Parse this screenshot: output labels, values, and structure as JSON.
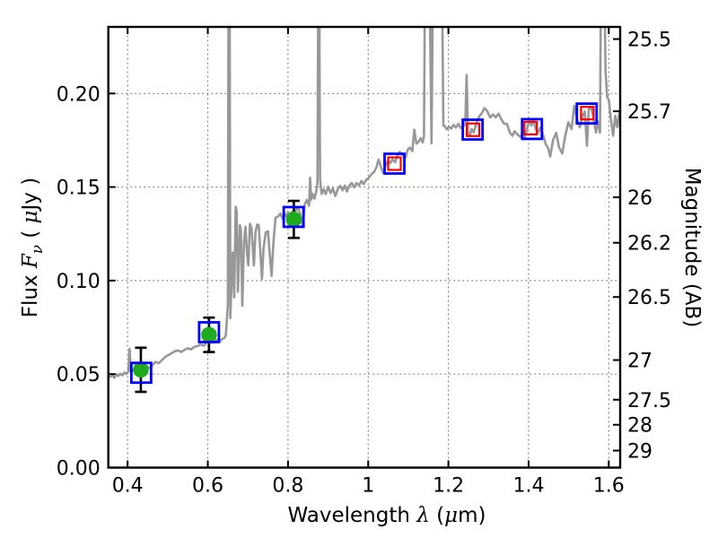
{
  "chart_data": {
    "type": "line",
    "description": "Galaxy SED: model spectrum (gray) with observed photometry (green circles with error bars) and band-averaged model/IR photometry (blue and red open squares)",
    "xlabel_parts": {
      "wavelength": "Wavelength ",
      "lambda": "λ",
      "open": " (",
      "mu": "μ",
      "close": "m)"
    },
    "ylabel_left_parts": {
      "flux": "Flux ",
      "F": "F",
      "nu": "ν",
      "open": " ( ",
      "mu": "μ",
      "jy": "Jy )"
    },
    "ylabel_right": "Magnitude (AB)",
    "xlim": [
      0.3519,
      1.6284
    ],
    "ylim": [
      0,
      0.2356
    ],
    "grid": "dotted",
    "x_ticks": [
      {
        "v": 0.4,
        "label": "0.4"
      },
      {
        "v": 0.6,
        "label": "0.6"
      },
      {
        "v": 0.8,
        "label": "0.8"
      },
      {
        "v": 1.0,
        "label": "1"
      },
      {
        "v": 1.2,
        "label": "1.2"
      },
      {
        "v": 1.4,
        "label": "1.4"
      },
      {
        "v": 1.6,
        "label": "1.6"
      }
    ],
    "y_ticks_left": [
      {
        "v": 0.0,
        "label": "0.00"
      },
      {
        "v": 0.05,
        "label": "0.05"
      },
      {
        "v": 0.1,
        "label": "0.10"
      },
      {
        "v": 0.15,
        "label": "0.15"
      },
      {
        "v": 0.2,
        "label": "0.20"
      }
    ],
    "y_ticks_right": [
      {
        "label": "25.5",
        "mag": 25.5,
        "flux": 0.2291
      },
      {
        "label": "25.7",
        "mag": 25.7,
        "flux": 0.1905
      },
      {
        "label": "26",
        "mag": 26.0,
        "flux": 0.1445
      },
      {
        "label": "26.2",
        "mag": 26.2,
        "flux": 0.1202
      },
      {
        "label": "26.5",
        "mag": 26.5,
        "flux": 0.0912
      },
      {
        "label": "27",
        "mag": 27.0,
        "flux": 0.0575
      },
      {
        "label": "27.5",
        "mag": 27.5,
        "flux": 0.0363
      },
      {
        "label": "28",
        "mag": 28.0,
        "flux": 0.0229
      },
      {
        "label": "29",
        "mag": 29.0,
        "flux": 0.0091
      }
    ],
    "colors": {
      "spectrum": "#989898",
      "observed": "#1faa1f",
      "model_square": "#0000ff",
      "ir_square": "#ff0000",
      "errorbar": "#000000"
    },
    "series": [
      {
        "name": "observed-photometry",
        "marker": "filled-circle",
        "color": "#1faa1f",
        "points": [
          [
            0.433,
            0.0523,
            0.0118
          ],
          [
            0.603,
            0.071,
            0.0092
          ],
          [
            0.8145,
            0.1327,
            0.0099
          ]
        ]
      },
      {
        "name": "model-band-photometry",
        "marker": "open-square-blue",
        "color": "#0000ff",
        "points": [
          [
            0.434,
            0.0507
          ],
          [
            0.603,
            0.0724
          ],
          [
            0.814,
            0.134
          ],
          [
            1.0655,
            0.1625
          ],
          [
            1.2605,
            0.1807
          ],
          [
            1.4085,
            0.181
          ],
          [
            1.545,
            0.1893
          ]
        ]
      },
      {
        "name": "ir-band-photometry",
        "marker": "open-square-red",
        "color": "#ff0000",
        "points": [
          [
            1.0655,
            0.1625
          ],
          [
            1.2615,
            0.1806
          ],
          [
            1.405,
            0.1815
          ],
          [
            1.5465,
            0.1895
          ]
        ]
      }
    ],
    "spectrum": [
      [
        0.352,
        0.049
      ],
      [
        0.357,
        0.0485
      ],
      [
        0.362,
        0.0495
      ],
      [
        0.367,
        0.048
      ],
      [
        0.372,
        0.0498
      ],
      [
        0.377,
        0.049
      ],
      [
        0.382,
        0.0502
      ],
      [
        0.387,
        0.0493
      ],
      [
        0.392,
        0.0508
      ],
      [
        0.397,
        0.05
      ],
      [
        0.402,
        0.0515
      ],
      [
        0.405,
        0.0635
      ],
      [
        0.408,
        0.051
      ],
      [
        0.413,
        0.0522
      ],
      [
        0.418,
        0.0515
      ],
      [
        0.424,
        0.0528
      ],
      [
        0.43,
        0.0522
      ],
      [
        0.436,
        0.0535
      ],
      [
        0.442,
        0.0525
      ],
      [
        0.448,
        0.054
      ],
      [
        0.455,
        0.0532
      ],
      [
        0.462,
        0.0548
      ],
      [
        0.47,
        0.0565
      ],
      [
        0.478,
        0.0558
      ],
      [
        0.486,
        0.0575
      ],
      [
        0.494,
        0.0592
      ],
      [
        0.502,
        0.0602
      ],
      [
        0.51,
        0.0612
      ],
      [
        0.518,
        0.0622
      ],
      [
        0.526,
        0.0626
      ],
      [
        0.534,
        0.0618
      ],
      [
        0.542,
        0.063
      ],
      [
        0.55,
        0.0638
      ],
      [
        0.558,
        0.0632
      ],
      [
        0.566,
        0.0645
      ],
      [
        0.574,
        0.065
      ],
      [
        0.582,
        0.0658
      ],
      [
        0.59,
        0.0652
      ],
      [
        0.597,
        0.0669
      ],
      [
        0.604,
        0.0675
      ],
      [
        0.611,
        0.0668
      ],
      [
        0.618,
        0.068
      ],
      [
        0.625,
        0.0682
      ],
      [
        0.63,
        0.0675
      ],
      [
        0.636,
        0.0688
      ],
      [
        0.641,
        0.0692
      ],
      [
        0.645,
        0.0706
      ],
      [
        0.65,
        0.087
      ],
      [
        0.6515,
        0.26
      ],
      [
        0.6545,
        0.26
      ],
      [
        0.656,
        0.08
      ],
      [
        0.662,
        0.115
      ],
      [
        0.666,
        0.091
      ],
      [
        0.6695,
        0.1395
      ],
      [
        0.672,
        0.137
      ],
      [
        0.675,
        0.094
      ],
      [
        0.68,
        0.1296
      ],
      [
        0.6825,
        0.127
      ],
      [
        0.686,
        0.0865
      ],
      [
        0.69,
        0.12
      ],
      [
        0.694,
        0.1288
      ],
      [
        0.698,
        0.114
      ],
      [
        0.701,
        0.1081
      ],
      [
        0.705,
        0.1304
      ],
      [
        0.709,
        0.128
      ],
      [
        0.715,
        0.1081
      ],
      [
        0.719,
        0.126
      ],
      [
        0.7235,
        0.13
      ],
      [
        0.727,
        0.1296
      ],
      [
        0.731,
        0.115
      ],
      [
        0.735,
        0.1009
      ],
      [
        0.739,
        0.117
      ],
      [
        0.7445,
        0.1258
      ],
      [
        0.75,
        0.1264
      ],
      [
        0.7545,
        0.114
      ],
      [
        0.759,
        0.1025
      ],
      [
        0.7635,
        0.12
      ],
      [
        0.769,
        0.1336
      ],
      [
        0.775,
        0.1342
      ],
      [
        0.781,
        0.1358
      ],
      [
        0.787,
        0.1328
      ],
      [
        0.791,
        0.136
      ],
      [
        0.796,
        0.1342
      ],
      [
        0.8,
        0.1364
      ],
      [
        0.8045,
        0.1338
      ],
      [
        0.809,
        0.1366
      ],
      [
        0.8135,
        0.1322
      ],
      [
        0.818,
        0.1368
      ],
      [
        0.824,
        0.1392
      ],
      [
        0.83,
        0.1362
      ],
      [
        0.837,
        0.1288
      ],
      [
        0.842,
        0.141
      ],
      [
        0.847,
        0.1431
      ],
      [
        0.8525,
        0.14
      ],
      [
        0.855,
        0.155
      ],
      [
        0.858,
        0.1432
      ],
      [
        0.862,
        0.1462
      ],
      [
        0.866,
        0.1438
      ],
      [
        0.87,
        0.1472
      ],
      [
        0.8735,
        0.152
      ],
      [
        0.8755,
        0.26
      ],
      [
        0.878,
        0.26
      ],
      [
        0.88,
        0.154
      ],
      [
        0.884,
        0.1463
      ],
      [
        0.889,
        0.1488
      ],
      [
        0.894,
        0.1462
      ],
      [
        0.9,
        0.1502
      ],
      [
        0.906,
        0.1468
      ],
      [
        0.912,
        0.1492
      ],
      [
        0.918,
        0.1452
      ],
      [
        0.924,
        0.1488
      ],
      [
        0.93,
        0.1506
      ],
      [
        0.936,
        0.1482
      ],
      [
        0.942,
        0.1508
      ],
      [
        0.947,
        0.1476
      ],
      [
        0.953,
        0.1508
      ],
      [
        0.959,
        0.1522
      ],
      [
        0.965,
        0.1498
      ],
      [
        0.971,
        0.1522
      ],
      [
        0.977,
        0.1508
      ],
      [
        0.983,
        0.1532
      ],
      [
        0.989,
        0.1516
      ],
      [
        0.995,
        0.1538
      ],
      [
        1.001,
        0.1548
      ],
      [
        1.008,
        0.1568
      ],
      [
        1.015,
        0.1582
      ],
      [
        1.021,
        0.1608
      ],
      [
        1.026,
        0.1647
      ],
      [
        1.031,
        0.1612
      ],
      [
        1.037,
        0.1575
      ],
      [
        1.043,
        0.1612
      ],
      [
        1.049,
        0.1642
      ],
      [
        1.055,
        0.1628
      ],
      [
        1.061,
        0.1648
      ],
      [
        1.067,
        0.1632
      ],
      [
        1.073,
        0.1668
      ],
      [
        1.079,
        0.1688
      ],
      [
        1.085,
        0.1672
      ],
      [
        1.093,
        0.1655
      ],
      [
        1.099,
        0.1702
      ],
      [
        1.104,
        0.171
      ],
      [
        1.11,
        0.1692
      ],
      [
        1.115,
        0.1807
      ],
      [
        1.12,
        0.1732
      ],
      [
        1.126,
        0.1742
      ],
      [
        1.131,
        0.1762
      ],
      [
        1.136,
        0.1738
      ],
      [
        1.139,
        0.177
      ],
      [
        1.1415,
        0.26
      ],
      [
        1.153,
        0.26
      ],
      [
        1.158,
        0.1734
      ],
      [
        1.1615,
        0.26
      ],
      [
        1.184,
        0.26
      ],
      [
        1.1875,
        0.1828
      ],
      [
        1.19,
        0.1828
      ],
      [
        1.196,
        0.1808
      ],
      [
        1.201,
        0.1823
      ],
      [
        1.207,
        0.1812
      ],
      [
        1.213,
        0.1832
      ],
      [
        1.219,
        0.1818
      ],
      [
        1.225,
        0.1838
      ],
      [
        1.231,
        0.1815
      ],
      [
        1.237,
        0.1822
      ],
      [
        1.242,
        0.184
      ],
      [
        1.2455,
        0.2099
      ],
      [
        1.249,
        0.178
      ],
      [
        1.253,
        0.1774
      ],
      [
        1.258,
        0.181
      ],
      [
        1.263,
        0.1792
      ],
      [
        1.27,
        0.1842
      ],
      [
        1.277,
        0.1878
      ],
      [
        1.283,
        0.1894
      ],
      [
        1.29,
        0.1922
      ],
      [
        1.297,
        0.1906
      ],
      [
        1.304,
        0.1872
      ],
      [
        1.311,
        0.1888
      ],
      [
        1.318,
        0.1872
      ],
      [
        1.325,
        0.1892
      ],
      [
        1.332,
        0.1862
      ],
      [
        1.339,
        0.1838
      ],
      [
        1.346,
        0.1838
      ],
      [
        1.353,
        0.1792
      ],
      [
        1.36,
        0.1774
      ],
      [
        1.365,
        0.1798
      ],
      [
        1.372,
        0.1782
      ],
      [
        1.379,
        0.1768
      ],
      [
        1.386,
        0.1788
      ],
      [
        1.391,
        0.1766
      ],
      [
        1.397,
        0.182
      ],
      [
        1.402,
        0.1854
      ],
      [
        1.407,
        0.1828
      ],
      [
        1.412,
        0.186
      ],
      [
        1.418,
        0.1808
      ],
      [
        1.424,
        0.1792
      ],
      [
        1.43,
        0.182
      ],
      [
        1.437,
        0.1772
      ],
      [
        1.443,
        0.1727
      ],
      [
        1.449,
        0.1708
      ],
      [
        1.454,
        0.1663
      ],
      [
        1.461,
        0.1752
      ],
      [
        1.469,
        0.179
      ],
      [
        1.476,
        0.1712
      ],
      [
        1.484,
        0.1679
      ],
      [
        1.491,
        0.1768
      ],
      [
        1.499,
        0.1846
      ],
      [
        1.507,
        0.181
      ],
      [
        1.514,
        0.1934
      ],
      [
        1.521,
        0.186
      ],
      [
        1.528,
        0.182
      ],
      [
        1.534,
        0.1878
      ],
      [
        1.54,
        0.1904
      ],
      [
        1.5455,
        0.172
      ],
      [
        1.55,
        0.1916
      ],
      [
        1.556,
        0.1928
      ],
      [
        1.562,
        0.1868
      ],
      [
        1.568,
        0.1792
      ],
      [
        1.5735,
        0.185
      ],
      [
        1.578,
        0.179
      ],
      [
        1.5805,
        0.26
      ],
      [
        1.589,
        0.26
      ],
      [
        1.592,
        0.212
      ],
      [
        1.596,
        0.198
      ],
      [
        1.6,
        0.1966
      ],
      [
        1.605,
        0.1868
      ],
      [
        1.611,
        0.1774
      ],
      [
        1.616,
        0.1882
      ],
      [
        1.621,
        0.182
      ],
      [
        1.6265,
        0.19
      ],
      [
        1.628,
        0.186
      ]
    ]
  }
}
